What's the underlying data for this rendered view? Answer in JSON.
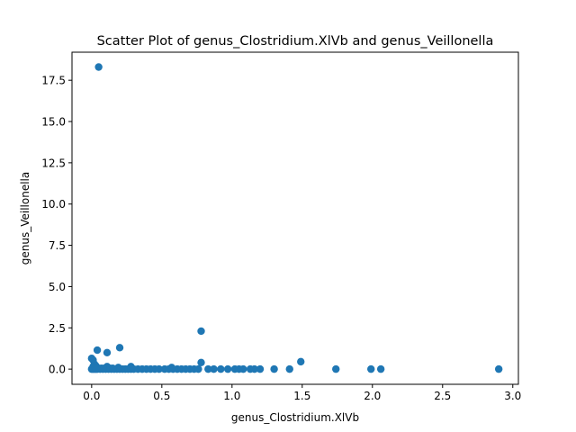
{
  "chart_data": {
    "type": "scatter",
    "title": "Scatter Plot of genus_Clostridium.XlVb and genus_Veillonella",
    "xlabel": "genus_Clostridium.XlVb",
    "ylabel": "genus_Veillonella",
    "xlim": [
      -0.14,
      3.04
    ],
    "ylim": [
      -0.92,
      19.2
    ],
    "xticks": [
      0.0,
      0.5,
      1.0,
      1.5,
      2.0,
      2.5,
      3.0
    ],
    "xtick_labels": [
      "0.0",
      "0.5",
      "1.0",
      "1.5",
      "2.0",
      "2.5",
      "3.0"
    ],
    "yticks": [
      0.0,
      2.5,
      5.0,
      7.5,
      10.0,
      12.5,
      15.0,
      17.5
    ],
    "ytick_labels": [
      "0.0",
      "2.5",
      "5.0",
      "7.5",
      "10.0",
      "12.5",
      "15.0",
      "17.5"
    ],
    "grid": false,
    "marker_color": "#1f77b4",
    "series": [
      {
        "x": [
          0.05,
          0.0,
          0.01,
          0.02,
          0.03,
          0.01,
          0.02,
          0.05,
          0.04,
          0.11,
          0.2,
          0.78,
          0.78,
          1.49,
          0.0,
          0.01,
          0.02,
          0.03,
          0.04,
          0.06,
          0.08,
          0.1,
          0.12,
          0.14,
          0.16,
          0.18,
          0.2,
          0.22,
          0.24,
          0.26,
          0.28,
          0.3,
          0.33,
          0.36,
          0.39,
          0.42,
          0.45,
          0.48,
          0.52,
          0.55,
          0.58,
          0.61,
          0.64,
          0.67,
          0.7,
          0.73,
          0.76,
          0.83,
          0.87,
          0.92,
          0.97,
          1.02,
          1.05,
          1.08,
          1.13,
          1.16,
          1.2,
          1.3,
          1.41,
          1.74,
          1.99,
          2.06,
          2.9,
          0.11,
          0.19,
          0.28,
          0.57,
          0.01,
          0.03,
          0.07,
          0.09,
          0.13,
          0.15
        ],
        "y": [
          18.3,
          0.65,
          0.55,
          0.3,
          0.2,
          0.15,
          0.1,
          0.05,
          1.15,
          1.0,
          1.3,
          2.3,
          0.4,
          0.45,
          0.0,
          0.0,
          0.0,
          0.0,
          0.0,
          0.0,
          0.0,
          0.0,
          0.0,
          0.0,
          0.0,
          0.0,
          0.0,
          0.0,
          0.0,
          0.0,
          0.0,
          0.0,
          0.0,
          0.0,
          0.0,
          0.0,
          0.0,
          0.0,
          0.0,
          0.0,
          0.0,
          0.0,
          0.0,
          0.0,
          0.0,
          0.0,
          0.0,
          0.0,
          0.0,
          0.0,
          0.0,
          0.0,
          0.0,
          0.0,
          0.0,
          0.0,
          0.0,
          0.0,
          0.0,
          0.0,
          0.0,
          0.0,
          0.0,
          0.15,
          0.1,
          0.15,
          0.1,
          0.05,
          0.05,
          0.05,
          0.05,
          0.05,
          0.05
        ]
      }
    ]
  }
}
